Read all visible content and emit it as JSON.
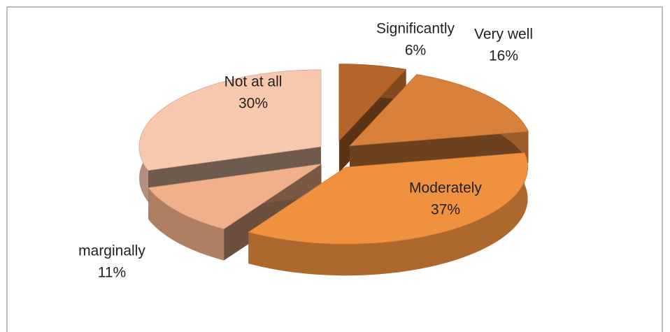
{
  "chart_data": {
    "type": "pie3d",
    "categories": [
      "Significantly",
      "Very well",
      "Moderately",
      "marginally",
      "Not at all"
    ],
    "values": [
      6,
      16,
      37,
      11,
      30
    ],
    "value_labels": [
      "6%",
      "16%",
      "37%",
      "11%",
      "30%"
    ],
    "colors": [
      "#b5652a",
      "#d9813b",
      "#f0913f",
      "#f2b08a",
      "#f7c8ad"
    ]
  }
}
